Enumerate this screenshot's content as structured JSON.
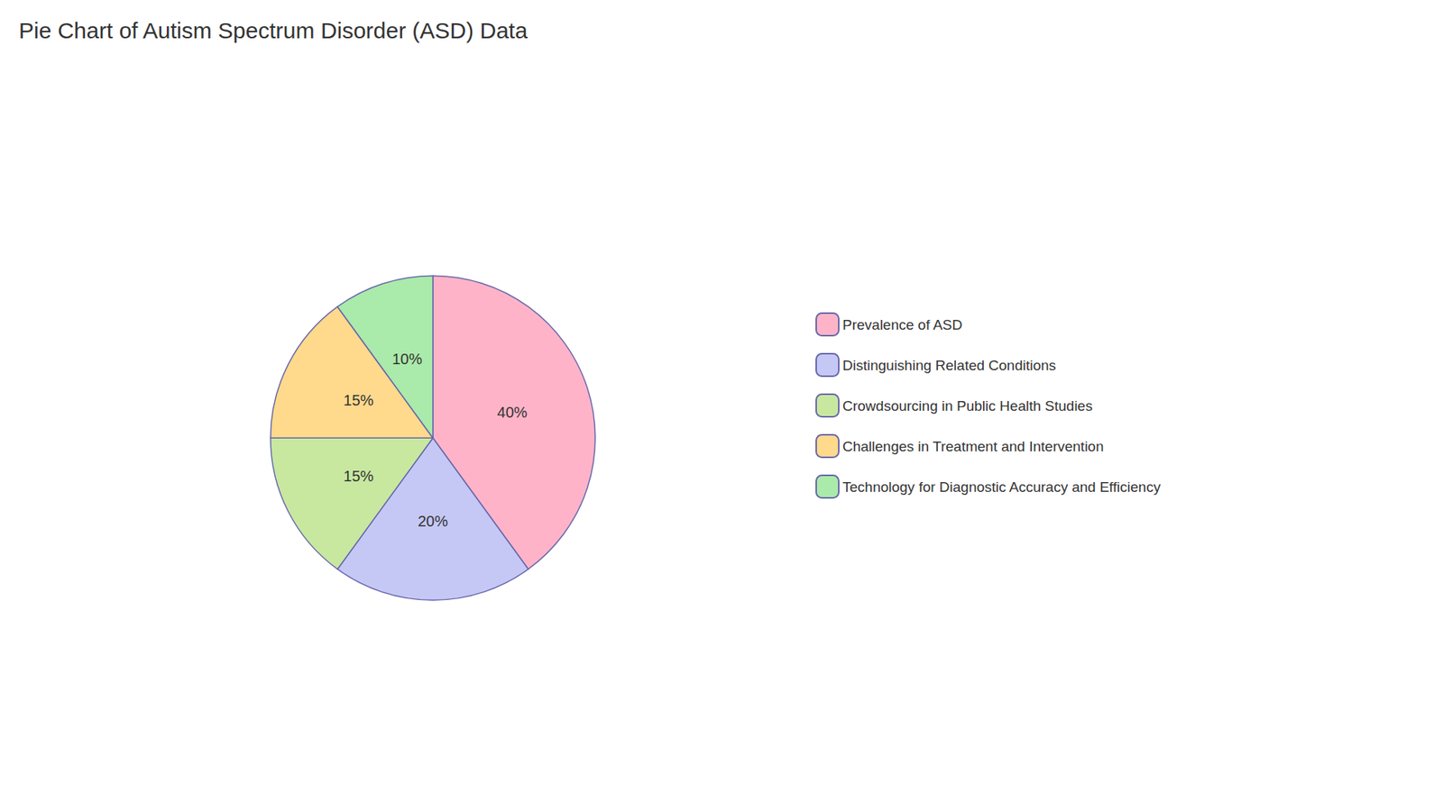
{
  "chart_data": {
    "type": "pie",
    "title": "Pie Chart of Autism Spectrum Disorder (ASD) Data",
    "categories": [
      "Prevalence of ASD",
      "Distinguishing Related Conditions",
      "Crowdsourcing in Public Health Studies",
      "Challenges in Treatment and Intervention",
      "Technology for Diagnostic Accuracy and Efficiency"
    ],
    "values": [
      40,
      20,
      15,
      15,
      10
    ],
    "value_labels": [
      "40%",
      "20%",
      "15%",
      "15%",
      "10%"
    ],
    "colors": [
      "#FFB3C8",
      "#C5C8F5",
      "#C8E8A0",
      "#FFD98C",
      "#AAEAAA"
    ],
    "data_labels": true,
    "legend": "right"
  }
}
